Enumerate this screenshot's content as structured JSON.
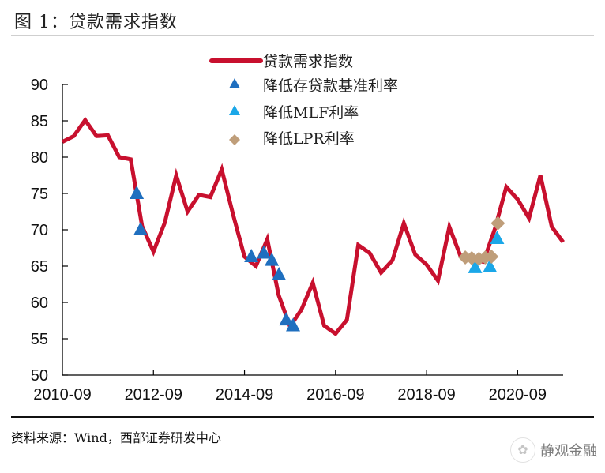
{
  "title": "图 1：贷款需求指数",
  "source": "资料来源：Wind，西部证券研发中心",
  "watermark": {
    "text": "静观金融",
    "logo_icon": "wechat-icon"
  },
  "colors": {
    "line": "#C8102E",
    "deposit_rate_cut": "#1F6FBF",
    "mlf_rate_cut": "#1AA7E8",
    "lpr_rate_cut": "#BF9E7A",
    "axis": "#000000"
  },
  "chart_data": {
    "type": "line",
    "title": "贷款需求指数",
    "xlabel": "",
    "ylabel": "",
    "ylim": [
      50,
      90
    ],
    "yticks": [
      50,
      55,
      60,
      65,
      70,
      75,
      80,
      85,
      90
    ],
    "xticks": [
      "2010-09",
      "2012-09",
      "2014-09",
      "2016-09",
      "2018-09",
      "2020-09"
    ],
    "x_start": "2010-09",
    "x_step_months": 3,
    "grid": false,
    "legend_position": "top-center",
    "legend": [
      {
        "label": "贷款需求指数",
        "type": "line"
      },
      {
        "label": "降低存贷款基准利率",
        "type": "triangle"
      },
      {
        "label": "降低MLF利率",
        "type": "triangle"
      },
      {
        "label": "降低LPR利率",
        "type": "diamond"
      }
    ],
    "series": [
      {
        "name": "贷款需求指数",
        "values": [
          82.1,
          82.9,
          85.1,
          82.9,
          83.0,
          80.0,
          79.7,
          70.5,
          67.0,
          71.0,
          77.5,
          72.5,
          74.8,
          74.5,
          78.3,
          72.1,
          66.3,
          65.0,
          68.7,
          61.0,
          56.7,
          59.0,
          62.7,
          56.8,
          55.7,
          57.6,
          67.9,
          66.8,
          64.1,
          65.8,
          70.9,
          66.6,
          65.2,
          63.0,
          70.4,
          66.3,
          65.8,
          65.6,
          70.1,
          75.9,
          74.2,
          71.6,
          77.5,
          70.4,
          68.3
        ]
      }
    ],
    "markers": {
      "deposit_rate_cut": {
        "label": "降低存贷款基准利率",
        "points": [
          {
            "month_offset": 19.6,
            "value": 75.0
          },
          {
            "month_offset": 20.6,
            "value": 70.0
          },
          {
            "month_offset": 49.8,
            "value": 66.3
          },
          {
            "month_offset": 53.1,
            "value": 66.8
          },
          {
            "month_offset": 55.2,
            "value": 65.8
          },
          {
            "month_offset": 57.1,
            "value": 63.8
          },
          {
            "month_offset": 59.0,
            "value": 57.6
          },
          {
            "month_offset": 60.8,
            "value": 56.8
          }
        ]
      },
      "mlf_rate_cut": {
        "label": "降低MLF利率",
        "points": [
          {
            "month_offset": 108.8,
            "value": 64.8
          },
          {
            "month_offset": 112.7,
            "value": 64.9
          },
          {
            "month_offset": 114.6,
            "value": 68.8
          }
        ]
      },
      "lpr_rate_cut": {
        "label": "降低LPR利率",
        "points": [
          {
            "month_offset": 106.2,
            "value": 66.2
          },
          {
            "month_offset": 107.9,
            "value": 66.1
          },
          {
            "month_offset": 109.8,
            "value": 66.0
          },
          {
            "month_offset": 111.5,
            "value": 66.2
          },
          {
            "month_offset": 113.1,
            "value": 66.3
          },
          {
            "month_offset": 114.8,
            "value": 70.9
          }
        ]
      }
    }
  }
}
